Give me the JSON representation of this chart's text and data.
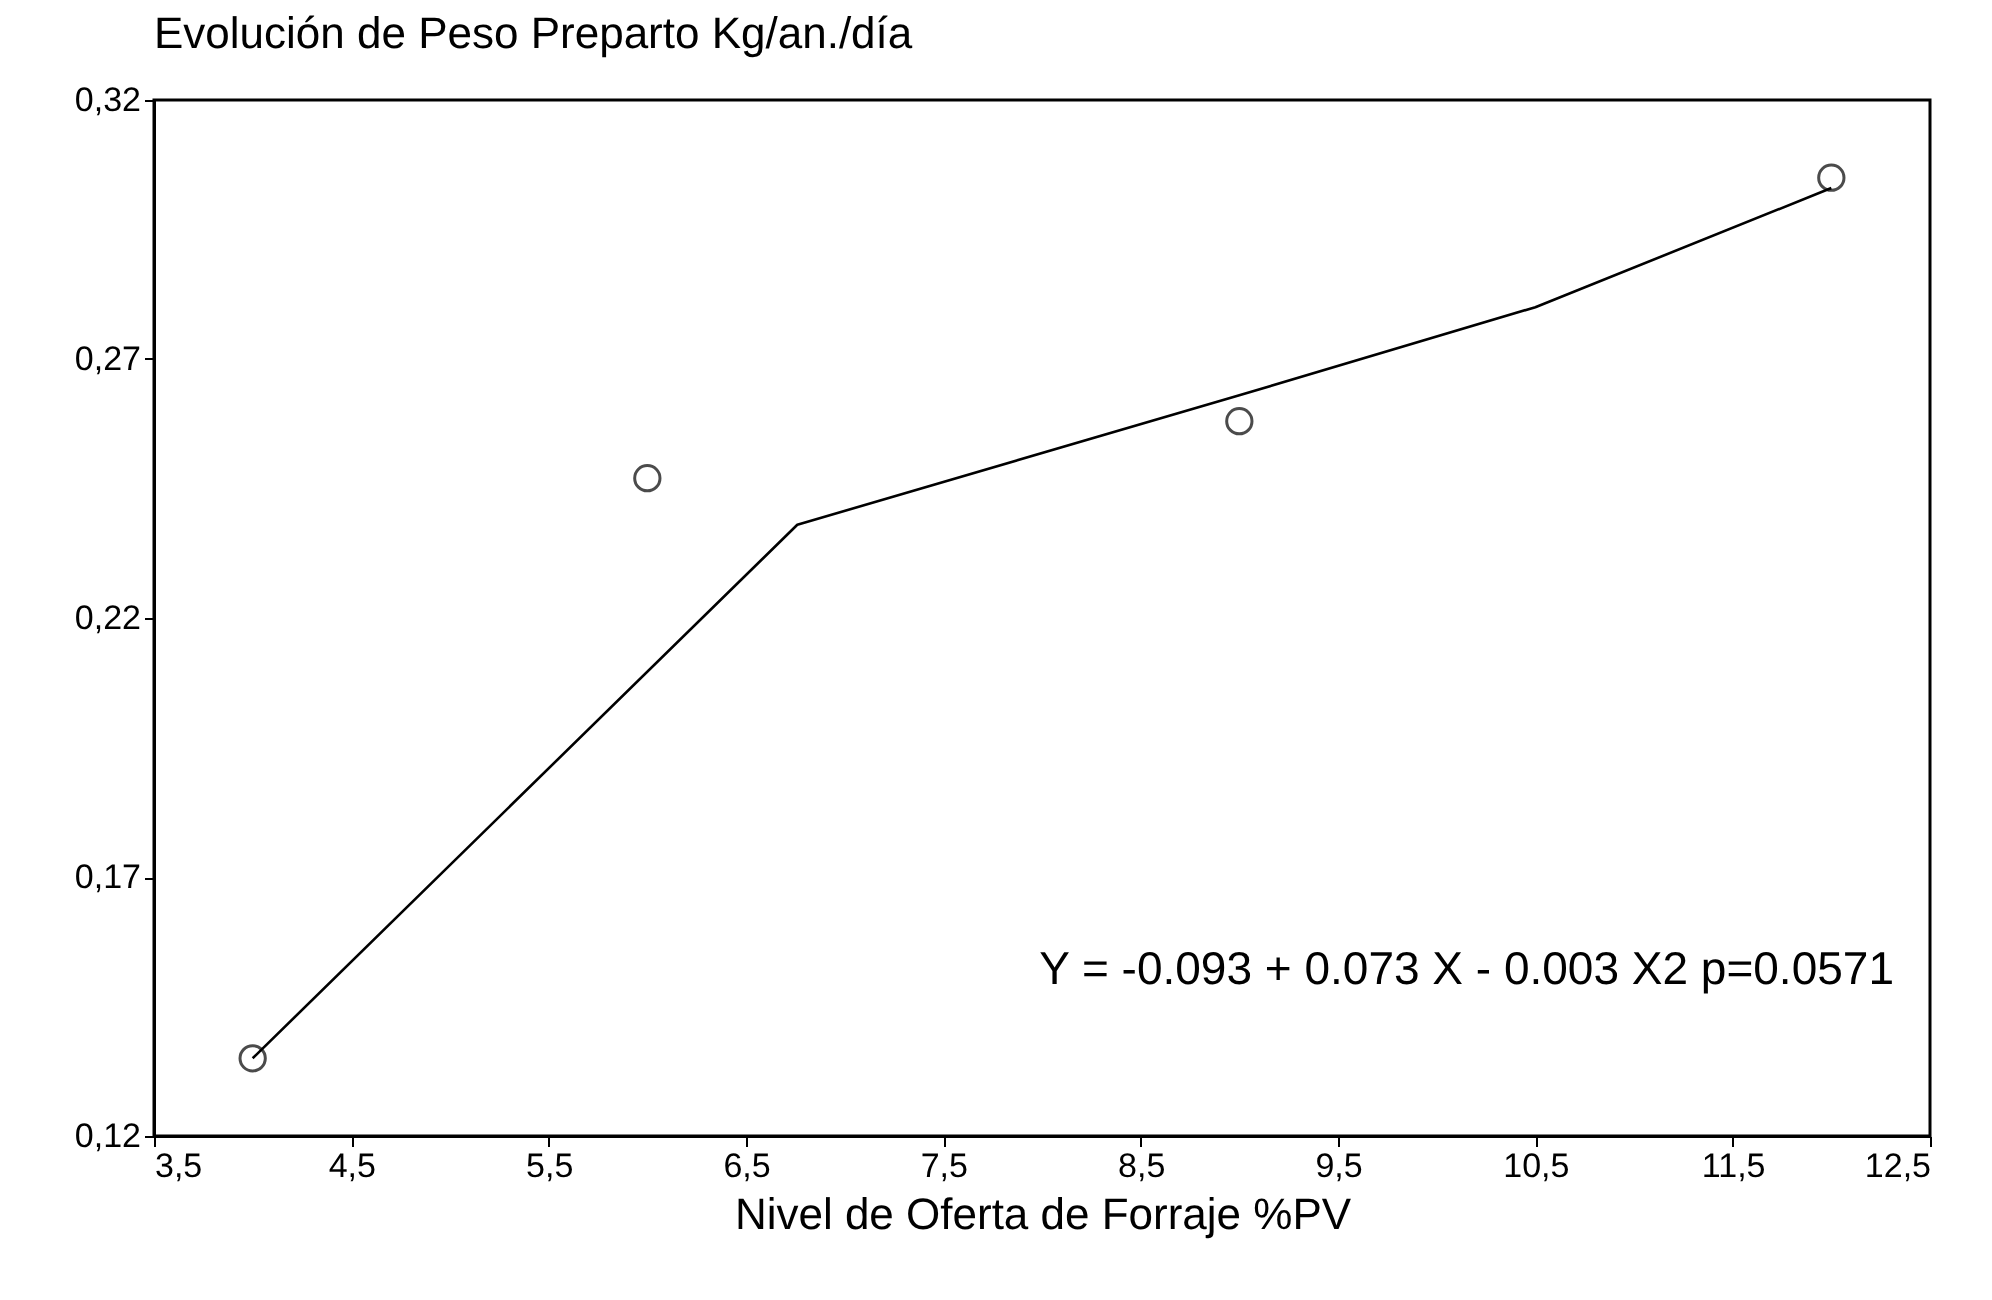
{
  "chart_data": {
    "type": "scatter",
    "title": "Evolución de Peso Preparto Kg/an./día",
    "xlabel": "Nivel de Oferta de Forraje %PV",
    "series": [
      {
        "color": "#000000",
        "marker": "circle",
        "x": [
          4,
          6,
          9,
          12
        ],
        "values": [
          0.135,
          0.247,
          0.258,
          0.305
        ]
      },
      {
        "type": "line",
        "color": "#000000",
        "marker": "none",
        "x": [
          4,
          6.76,
          9,
          10.5,
          12
        ],
        "values": [
          0.135,
          0.238,
          0.263,
          0.28,
          0.303
        ]
      }
    ],
    "xlim": [
      3.5,
      12.5
    ],
    "xticks": [
      {
        "value": 3.5,
        "label": "3,5"
      },
      {
        "value": 4.5,
        "label": "4,5"
      },
      {
        "value": 5.5,
        "label": "5,5"
      },
      {
        "value": 6.5,
        "label": "6,5"
      },
      {
        "value": 7.5,
        "label": "7,5"
      },
      {
        "value": 8.5,
        "label": "8,5"
      },
      {
        "value": 9.5,
        "label": "9,5"
      },
      {
        "value": 10.5,
        "label": "10,5"
      },
      {
        "value": 11.5,
        "label": "11,5"
      },
      {
        "value": 12.5,
        "label": "12,5"
      }
    ],
    "ylim": [
      0.12,
      0.32
    ],
    "yticks": [
      {
        "value": 0.12,
        "label": "0,12"
      },
      {
        "value": 0.17,
        "label": "0,17"
      },
      {
        "value": 0.22,
        "label": "0,22"
      },
      {
        "value": 0.27,
        "label": "0,27"
      },
      {
        "value": 0.32,
        "label": "0,32"
      }
    ],
    "annotations": [
      "Y = -0.093 + 0.073 X - 0.003 X2  p=0.0571"
    ],
    "grid": false
  }
}
